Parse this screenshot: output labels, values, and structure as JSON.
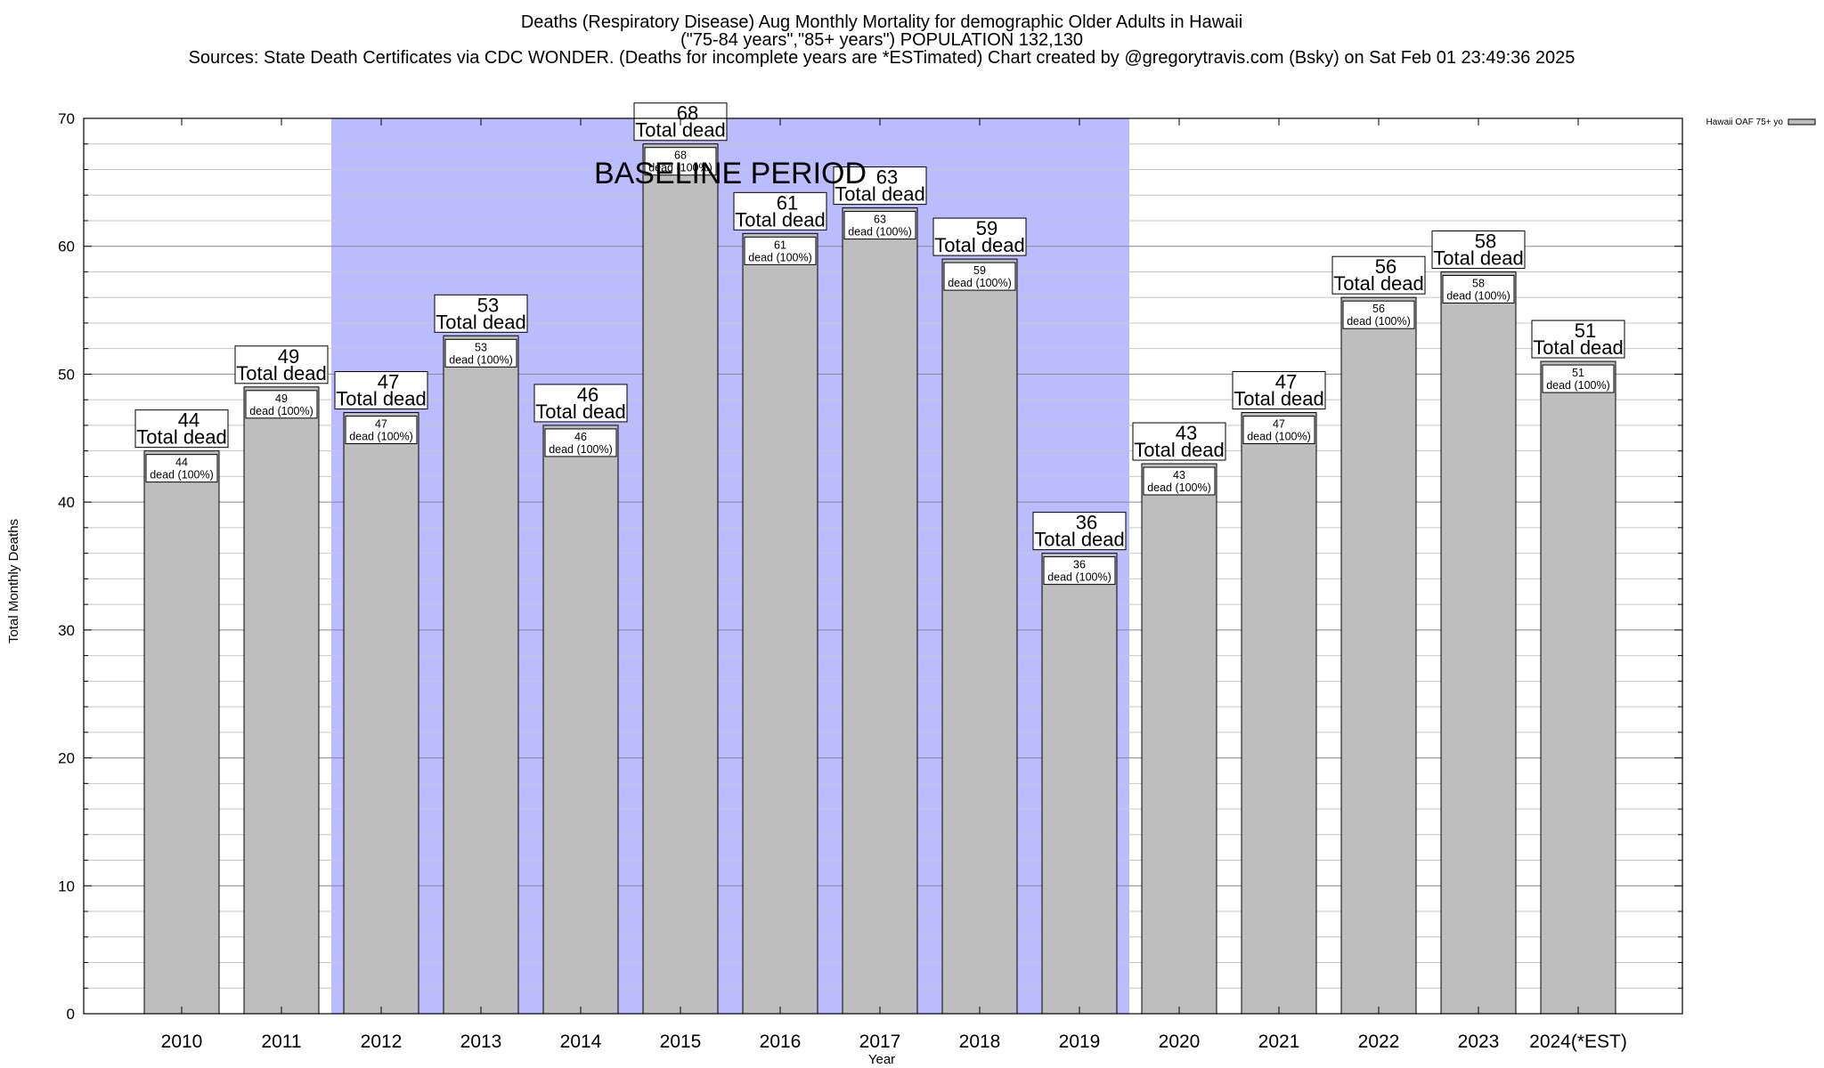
{
  "chart_data": {
    "type": "bar",
    "title_lines": [
      "Deaths (Respiratory Disease) Aug Monthly Mortality for demographic Older Adults in Hawaii",
      "(\"75-84 years\",\"85+ years\") POPULATION 132,130",
      "Sources: State Death Certificates via CDC WONDER. (Deaths for incomplete years are *ESTimated)              Chart created by @gregorytravis.com (Bsky) on Sat Feb 01 23:49:36 2025"
    ],
    "xlabel": "Year",
    "ylabel": "Total Monthly Deaths",
    "ylim": [
      0,
      70
    ],
    "yticks": [
      0,
      10,
      20,
      30,
      40,
      50,
      60,
      70
    ],
    "minor_step": 2,
    "categories": [
      "2010",
      "2011",
      "2012",
      "2013",
      "2014",
      "2015",
      "2016",
      "2017",
      "2018",
      "2019",
      "2020",
      "2021",
      "2022",
      "2023",
      "2024(*EST)"
    ],
    "series": [
      {
        "name": "Hawaii OAF 75+ yo",
        "values": [
          44,
          49,
          47,
          53,
          46,
          68,
          61,
          63,
          59,
          36,
          43,
          47,
          56,
          58,
          51
        ],
        "color": "#bebebe"
      }
    ],
    "total_label_text": "Total dead",
    "inner_label_text": "dead (100%)",
    "baseline": {
      "label": "BASELINE PERIOD",
      "start_category": "2012",
      "end_category": "2019",
      "color": "#bbbbff"
    },
    "grid": true,
    "legend_placement": "top-right"
  }
}
